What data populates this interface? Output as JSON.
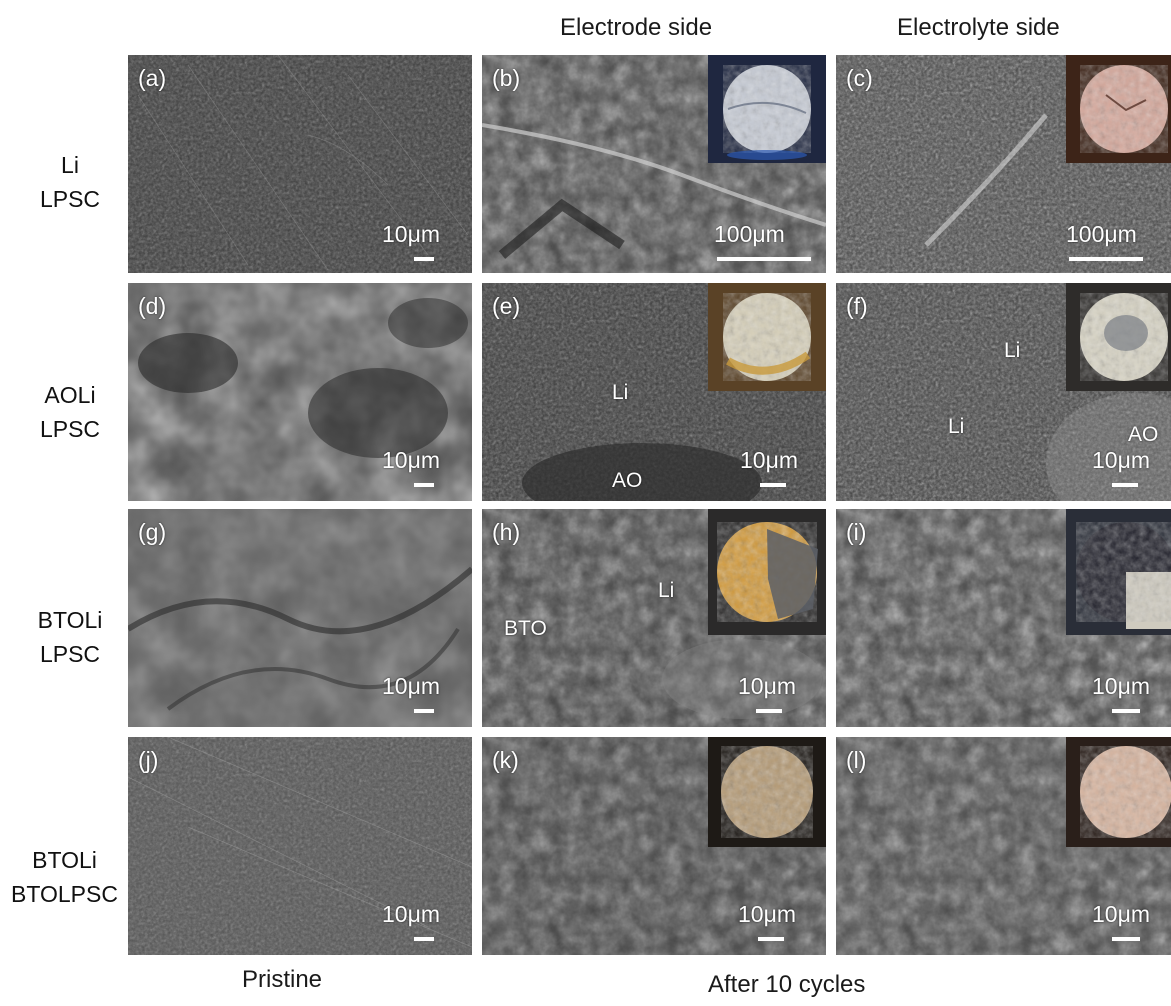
{
  "columns": {
    "electrode": "Electrode side",
    "electrolyte": "Electrolyte side"
  },
  "rows": [
    {
      "line1": "Li",
      "line2": "LPSC"
    },
    {
      "line1": "AOLi",
      "line2": "LPSC"
    },
    {
      "line1": "BTOLi",
      "line2": "LPSC"
    },
    {
      "line1": "BTOLi",
      "line2": "BTOLPSC"
    }
  ],
  "footer": {
    "pristine": "Pristine",
    "after": "After 10 cycles"
  },
  "panels": {
    "a": {
      "label": "(a)",
      "scale": "10μm"
    },
    "b": {
      "label": "(b)",
      "scale": "100μm"
    },
    "c": {
      "label": "(c)",
      "scale": "100μm"
    },
    "d": {
      "label": "(d)",
      "scale": "10μm"
    },
    "e": {
      "label": "(e)",
      "scale": "10μm",
      "anno1": "Li",
      "anno2": "AO"
    },
    "f": {
      "label": "(f)",
      "scale": "10μm",
      "anno1": "Li",
      "anno2": "Li",
      "anno3": "AO"
    },
    "g": {
      "label": "(g)",
      "scale": "10μm"
    },
    "h": {
      "label": "(h)",
      "scale": "10μm",
      "anno1": "Li",
      "anno2": "BTO"
    },
    "i": {
      "label": "(i)",
      "scale": "10μm"
    },
    "j": {
      "label": "(j)",
      "scale": "10μm"
    },
    "k": {
      "label": "(k)",
      "scale": "10μm"
    },
    "l": {
      "label": "(l)",
      "scale": "10μm"
    }
  }
}
